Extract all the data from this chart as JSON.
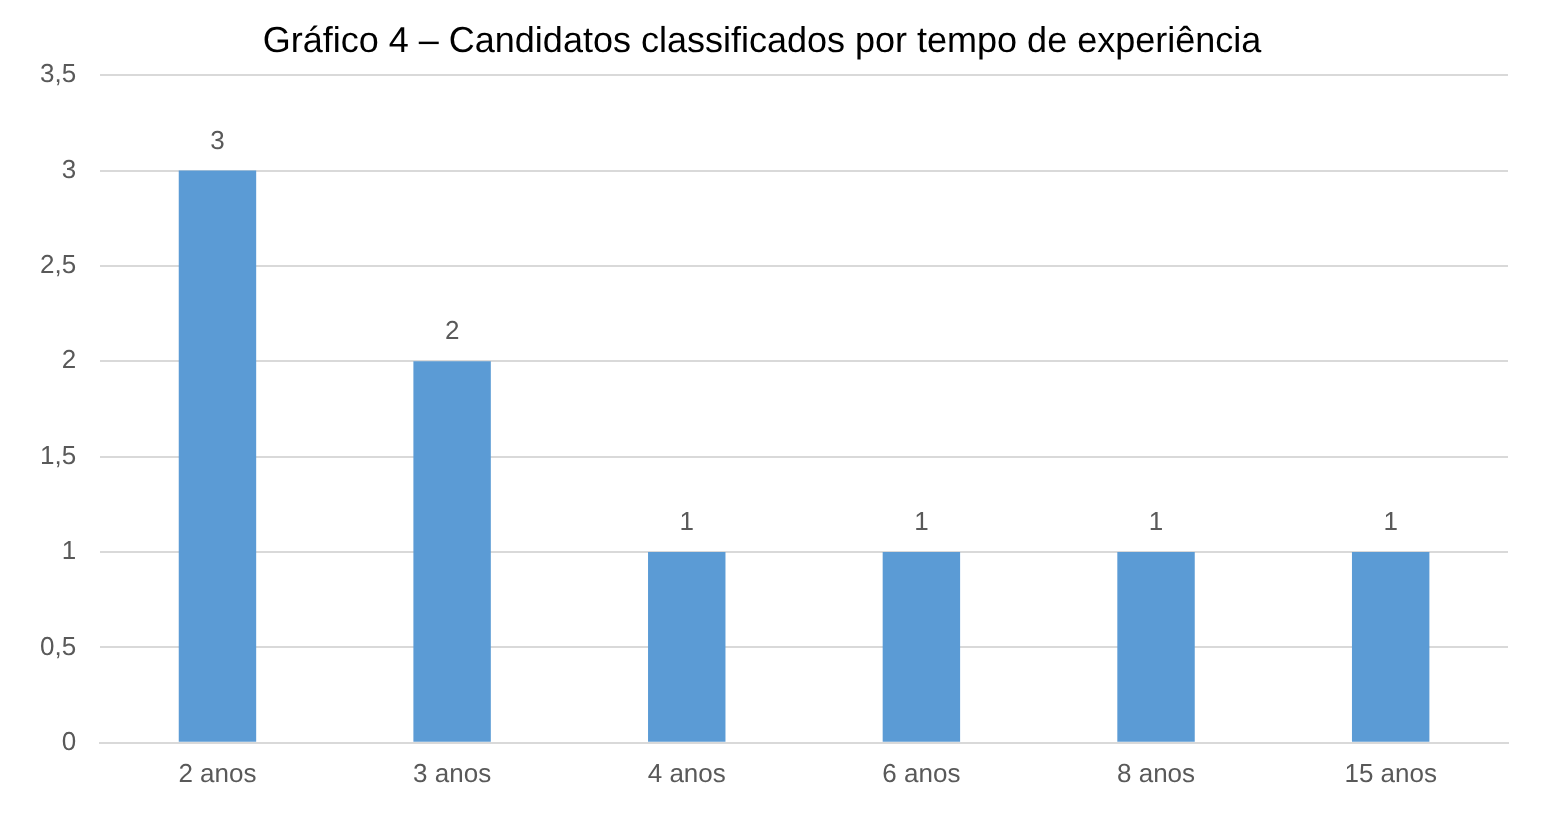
{
  "chart_data": {
    "type": "bar",
    "title": "Gráfico 4 – Candidatos classificados por tempo de experiência",
    "categories": [
      "2 anos",
      "3 anos",
      "4 anos",
      "6 anos",
      "8 anos",
      "15 anos"
    ],
    "values": [
      3,
      2,
      1,
      1,
      1,
      1
    ],
    "color": "#5b9bd5",
    "ylim": [
      0,
      3.5
    ],
    "yticks": [
      0,
      {
        "value": 0.5,
        "label": "0,5"
      },
      1,
      {
        "value": 1.5,
        "label": "1,5"
      },
      2,
      {
        "value": 2.5,
        "label": "2,5"
      },
      3,
      {
        "value": 3.5,
        "label": "3,5"
      }
    ],
    "grid": "y",
    "data_labels": true,
    "legend": false
  }
}
